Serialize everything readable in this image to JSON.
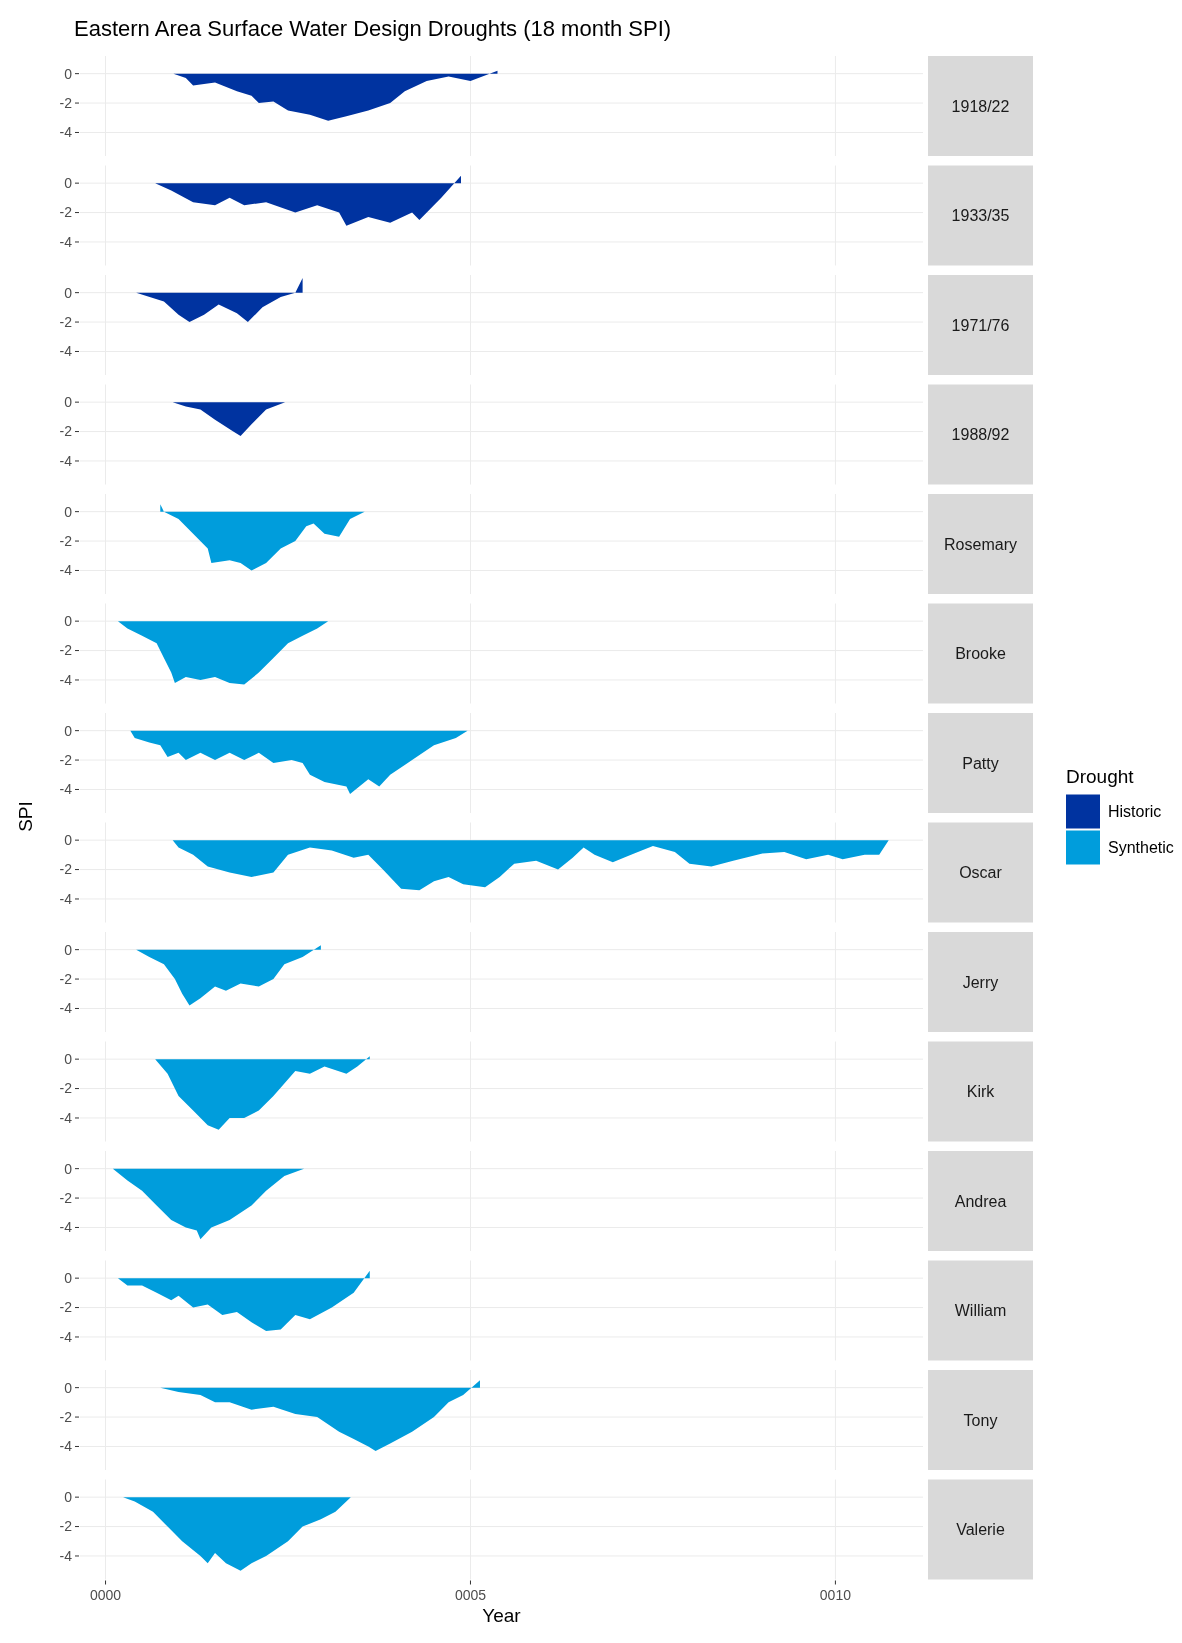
{
  "chart_data": [
    {
      "type": "area",
      "title": "Eastern Area Surface Water Design Droughts (18 month SPI)",
      "annotations": [
        "1918/22"
      ],
      "legend": "right",
      "legend_title": "Drought",
      "xlim": [
        -0.35,
        11.2
      ],
      "ylim": [
        -5.6,
        1.2
      ],
      "xticks": [
        {
          "value": 0,
          "label": null
        },
        {
          "value": 5,
          "label": null
        },
        {
          "value": 10,
          "label": null
        }
      ],
      "yticks": [
        -4,
        -2,
        0
      ],
      "grid": true,
      "tick_labels": "y",
      "series": [
        {
          "name": "Historic",
          "color": "#0033a0",
          "x": [
            0.93,
            1.1,
            1.2,
            1.5,
            1.8,
            2.0,
            2.1,
            2.3,
            2.5,
            2.8,
            3.05,
            3.3,
            3.6,
            3.9,
            4.1,
            4.4,
            4.7,
            5.0,
            5.37
          ],
          "values": [
            0,
            -0.3,
            -0.8,
            -0.6,
            -1.2,
            -1.5,
            -2.0,
            -1.9,
            -2.5,
            -2.8,
            -3.2,
            -2.9,
            -2.5,
            -2.0,
            -1.2,
            -0.5,
            -0.2,
            -0.5,
            0.2
          ]
        }
      ]
    },
    {
      "type": "area",
      "annotations": [
        "1933/35"
      ],
      "xlim": [
        -0.35,
        11.2
      ],
      "ylim": [
        -5.6,
        1.2
      ],
      "xticks": [
        {
          "value": 0,
          "label": null
        },
        {
          "value": 5,
          "label": null
        },
        {
          "value": 10,
          "label": null
        }
      ],
      "yticks": [
        -4,
        -2,
        0
      ],
      "grid": true,
      "tick_labels": "y",
      "series": [
        {
          "color": "#0033a0",
          "x": [
            0.68,
            0.9,
            1.2,
            1.5,
            1.7,
            1.9,
            2.2,
            2.6,
            2.9,
            3.2,
            3.3,
            3.6,
            3.9,
            4.2,
            4.3,
            4.6,
            4.87
          ],
          "values": [
            0,
            -0.5,
            -1.3,
            -1.5,
            -1.0,
            -1.5,
            -1.3,
            -2.0,
            -1.5,
            -2.0,
            -2.9,
            -2.3,
            -2.7,
            -2.0,
            -2.5,
            -1.0,
            0.5
          ]
        }
      ]
    },
    {
      "type": "area",
      "annotations": [
        "1971/76"
      ],
      "xlim": [
        -0.35,
        11.2
      ],
      "ylim": [
        -5.6,
        1.2
      ],
      "xticks": [
        {
          "value": 0,
          "label": null
        },
        {
          "value": 5,
          "label": null
        },
        {
          "value": 10,
          "label": null
        }
      ],
      "yticks": [
        -4,
        -2,
        0
      ],
      "grid": true,
      "tick_labels": "y",
      "series": [
        {
          "color": "#0033a0",
          "x": [
            0.42,
            0.8,
            1.0,
            1.15,
            1.35,
            1.55,
            1.8,
            1.95,
            2.15,
            2.4,
            2.6,
            2.7
          ],
          "values": [
            0,
            -0.6,
            -1.5,
            -2.0,
            -1.5,
            -0.8,
            -1.4,
            -2.0,
            -1.0,
            -0.3,
            0,
            1.0
          ]
        }
      ]
    },
    {
      "type": "area",
      "annotations": [
        "1988/92"
      ],
      "xlim": [
        -0.35,
        11.2
      ],
      "ylim": [
        -5.6,
        1.2
      ],
      "xticks": [
        {
          "value": 0,
          "label": null
        },
        {
          "value": 5,
          "label": null
        },
        {
          "value": 10,
          "label": null
        }
      ],
      "yticks": [
        -4,
        -2,
        0
      ],
      "grid": true,
      "tick_labels": "y",
      "series": [
        {
          "color": "#0033a0",
          "x": [
            0.92,
            1.1,
            1.3,
            1.5,
            1.75,
            1.85,
            2.0,
            2.2,
            2.46
          ],
          "values": [
            0,
            -0.3,
            -0.5,
            -1.2,
            -2.0,
            -2.3,
            -1.5,
            -0.5,
            0
          ]
        }
      ]
    },
    {
      "type": "area",
      "annotations": [
        "Rosemary"
      ],
      "xlim": [
        -0.35,
        11.2
      ],
      "ylim": [
        -5.6,
        1.2
      ],
      "xticks": [
        {
          "value": 0,
          "label": null
        },
        {
          "value": 5,
          "label": null
        },
        {
          "value": 10,
          "label": null
        }
      ],
      "yticks": [
        -4,
        -2,
        0
      ],
      "grid": true,
      "tick_labels": "y",
      "series": [
        {
          "name": "Synthetic",
          "color": "#009ddc",
          "x": [
            0.75,
            0.8,
            1.0,
            1.2,
            1.4,
            1.45,
            1.7,
            1.85,
            2.0,
            2.2,
            2.4,
            2.6,
            2.75,
            2.85,
            3.0,
            3.2,
            3.35,
            3.55
          ],
          "values": [
            0.5,
            0,
            -0.5,
            -1.5,
            -2.5,
            -3.5,
            -3.3,
            -3.5,
            -4.0,
            -3.5,
            -2.5,
            -2.0,
            -1.0,
            -0.8,
            -1.5,
            -1.7,
            -0.5,
            0
          ]
        }
      ]
    },
    {
      "type": "area",
      "annotations": [
        "Brooke"
      ],
      "xlim": [
        -0.35,
        11.2
      ],
      "ylim": [
        -5.6,
        1.2
      ],
      "xticks": [
        {
          "value": 0,
          "label": null
        },
        {
          "value": 5,
          "label": null
        },
        {
          "value": 10,
          "label": null
        }
      ],
      "yticks": [
        -4,
        -2,
        0
      ],
      "grid": true,
      "tick_labels": "y",
      "series": [
        {
          "color": "#009ddc",
          "x": [
            0.17,
            0.3,
            0.5,
            0.7,
            0.8,
            0.9,
            0.95,
            1.1,
            1.3,
            1.5,
            1.7,
            1.9,
            2.1,
            2.3,
            2.5,
            2.7,
            2.9,
            3.05
          ],
          "values": [
            0,
            -0.5,
            -1.0,
            -1.5,
            -2.5,
            -3.5,
            -4.2,
            -3.8,
            -4.0,
            -3.8,
            -4.2,
            -4.3,
            -3.5,
            -2.5,
            -1.5,
            -1.0,
            -0.5,
            0
          ]
        }
      ]
    },
    {
      "type": "area",
      "annotations": [
        "Patty"
      ],
      "xlim": [
        -0.35,
        11.2
      ],
      "ylim": [
        -5.6,
        1.2
      ],
      "xticks": [
        {
          "value": 0,
          "label": null
        },
        {
          "value": 5,
          "label": null
        },
        {
          "value": 10,
          "label": null
        }
      ],
      "yticks": [
        -4,
        -2,
        0
      ],
      "grid": true,
      "tick_labels": "y",
      "series": [
        {
          "color": "#009ddc",
          "x": [
            0.34,
            0.4,
            0.6,
            0.75,
            0.85,
            1.0,
            1.1,
            1.3,
            1.5,
            1.7,
            1.9,
            2.1,
            2.3,
            2.55,
            2.7,
            2.8,
            3.0,
            3.3,
            3.35,
            3.6,
            3.75,
            3.9,
            4.2,
            4.5,
            4.8,
            4.96
          ],
          "values": [
            0,
            -0.5,
            -0.8,
            -1.0,
            -1.8,
            -1.5,
            -2.0,
            -1.5,
            -2.0,
            -1.5,
            -2.0,
            -1.5,
            -2.2,
            -2.0,
            -2.2,
            -3.0,
            -3.5,
            -3.8,
            -4.3,
            -3.3,
            -3.8,
            -3.0,
            -2.0,
            -1.0,
            -0.5,
            0
          ]
        }
      ]
    },
    {
      "type": "area",
      "annotations": [
        "Oscar"
      ],
      "ylabel": "SPI",
      "xlim": [
        -0.35,
        11.2
      ],
      "ylim": [
        -5.6,
        1.2
      ],
      "xticks": [
        {
          "value": 0,
          "label": null
        },
        {
          "value": 5,
          "label": null
        },
        {
          "value": 10,
          "label": null
        }
      ],
      "yticks": [
        -4,
        -2,
        0
      ],
      "grid": true,
      "tick_labels": "y",
      "series": [
        {
          "color": "#009ddc",
          "x": [
            0.92,
            1.0,
            1.2,
            1.4,
            1.7,
            2.0,
            2.3,
            2.5,
            2.8,
            3.1,
            3.4,
            3.6,
            3.8,
            4.05,
            4.3,
            4.5,
            4.7,
            4.9,
            5.2,
            5.4,
            5.6,
            5.9,
            6.2,
            6.4,
            6.55,
            6.7,
            6.95,
            7.2,
            7.5,
            7.8,
            8.0,
            8.3,
            8.6,
            9.0,
            9.3,
            9.6,
            9.9,
            10.1,
            10.4,
            10.6,
            10.73
          ],
          "values": [
            0,
            -0.5,
            -1.0,
            -1.8,
            -2.2,
            -2.5,
            -2.2,
            -1.0,
            -0.5,
            -0.7,
            -1.2,
            -1.0,
            -2.0,
            -3.3,
            -3.4,
            -2.8,
            -2.5,
            -3.0,
            -3.2,
            -2.5,
            -1.6,
            -1.4,
            -2.0,
            -1.2,
            -0.5,
            -1.0,
            -1.5,
            -1.0,
            -0.4,
            -0.8,
            -1.6,
            -1.8,
            -1.4,
            -0.9,
            -0.8,
            -1.3,
            -1.0,
            -1.3,
            -1.0,
            -1.0,
            0
          ]
        }
      ]
    },
    {
      "type": "area",
      "annotations": [
        "Jerry"
      ],
      "xlim": [
        -0.35,
        11.2
      ],
      "ylim": [
        -5.6,
        1.2
      ],
      "xticks": [
        {
          "value": 0,
          "label": null
        },
        {
          "value": 5,
          "label": null
        },
        {
          "value": 10,
          "label": null
        }
      ],
      "yticks": [
        -4,
        -2,
        0
      ],
      "grid": true,
      "tick_labels": "y",
      "series": [
        {
          "color": "#009ddc",
          "x": [
            0.42,
            0.6,
            0.8,
            0.95,
            1.05,
            1.15,
            1.3,
            1.5,
            1.65,
            1.85,
            2.1,
            2.3,
            2.45,
            2.7,
            2.95
          ],
          "values": [
            0,
            -0.5,
            -1.0,
            -2.0,
            -3.0,
            -3.8,
            -3.3,
            -2.5,
            -2.8,
            -2.3,
            -2.5,
            -2.0,
            -1.0,
            -0.5,
            0.3
          ]
        }
      ]
    },
    {
      "type": "area",
      "annotations": [
        "Kirk"
      ],
      "xlim": [
        -0.35,
        11.2
      ],
      "ylim": [
        -5.6,
        1.2
      ],
      "xticks": [
        {
          "value": 0,
          "label": null
        },
        {
          "value": 5,
          "label": null
        },
        {
          "value": 10,
          "label": null
        }
      ],
      "yticks": [
        -4,
        -2,
        0
      ],
      "grid": true,
      "tick_labels": "y",
      "series": [
        {
          "color": "#009ddc",
          "x": [
            0.68,
            0.85,
            1.0,
            1.2,
            1.4,
            1.55,
            1.7,
            1.9,
            2.1,
            2.3,
            2.6,
            2.8,
            3.0,
            3.3,
            3.45,
            3.62
          ],
          "values": [
            0,
            -1.0,
            -2.5,
            -3.5,
            -4.5,
            -4.8,
            -4.0,
            -4.0,
            -3.5,
            -2.5,
            -0.8,
            -1.0,
            -0.5,
            -1.0,
            -0.5,
            0.2
          ]
        }
      ]
    },
    {
      "type": "area",
      "annotations": [
        "Andrea"
      ],
      "xlim": [
        -0.35,
        11.2
      ],
      "ylim": [
        -5.6,
        1.2
      ],
      "xticks": [
        {
          "value": 0,
          "label": null
        },
        {
          "value": 5,
          "label": null
        },
        {
          "value": 10,
          "label": null
        }
      ],
      "yticks": [
        -4,
        -2,
        0
      ],
      "grid": true,
      "tick_labels": "y",
      "series": [
        {
          "color": "#009ddc",
          "x": [
            0.1,
            0.3,
            0.5,
            0.7,
            0.9,
            1.1,
            1.25,
            1.3,
            1.45,
            1.7,
            2.0,
            2.2,
            2.45,
            2.72
          ],
          "values": [
            0,
            -0.8,
            -1.5,
            -2.5,
            -3.5,
            -4.0,
            -4.2,
            -4.8,
            -4.0,
            -3.5,
            -2.5,
            -1.5,
            -0.5,
            0
          ]
        }
      ]
    },
    {
      "type": "area",
      "annotations": [
        "William"
      ],
      "xlim": [
        -0.35,
        11.2
      ],
      "ylim": [
        -5.6,
        1.2
      ],
      "xticks": [
        {
          "value": 0,
          "label": null
        },
        {
          "value": 5,
          "label": null
        },
        {
          "value": 10,
          "label": null
        }
      ],
      "yticks": [
        -4,
        -2,
        0
      ],
      "grid": true,
      "tick_labels": "y",
      "series": [
        {
          "color": "#009ddc",
          "x": [
            0.17,
            0.3,
            0.5,
            0.7,
            0.9,
            1.0,
            1.2,
            1.4,
            1.6,
            1.8,
            2.0,
            2.2,
            2.4,
            2.6,
            2.8,
            3.1,
            3.4,
            3.62
          ],
          "values": [
            0,
            -0.5,
            -0.5,
            -1.0,
            -1.5,
            -1.2,
            -2.0,
            -1.8,
            -2.5,
            -2.3,
            -3.0,
            -3.6,
            -3.5,
            -2.5,
            -2.8,
            -2.0,
            -1.0,
            0.5
          ]
        }
      ]
    },
    {
      "type": "area",
      "annotations": [
        "Tony"
      ],
      "xlim": [
        -0.35,
        11.2
      ],
      "ylim": [
        -5.6,
        1.2
      ],
      "xticks": [
        {
          "value": 0,
          "label": null
        },
        {
          "value": 5,
          "label": null
        },
        {
          "value": 10,
          "label": null
        }
      ],
      "yticks": [
        -4,
        -2,
        0
      ],
      "grid": true,
      "tick_labels": "y",
      "series": [
        {
          "color": "#009ddc",
          "x": [
            0.75,
            1.0,
            1.3,
            1.5,
            1.7,
            2.0,
            2.3,
            2.6,
            2.9,
            3.2,
            3.4,
            3.6,
            3.7,
            3.9,
            4.2,
            4.5,
            4.7,
            4.9,
            5.13
          ],
          "values": [
            0,
            -0.3,
            -0.5,
            -1.0,
            -1.0,
            -1.5,
            -1.3,
            -1.8,
            -2.0,
            -3.0,
            -3.5,
            -4.0,
            -4.3,
            -3.8,
            -3.0,
            -2.0,
            -1.0,
            -0.5,
            0.5
          ]
        }
      ]
    },
    {
      "type": "area",
      "annotations": [
        "Valerie"
      ],
      "xlabel": "Year",
      "xlim": [
        -0.35,
        11.2
      ],
      "ylim": [
        -5.6,
        1.2
      ],
      "xticks": [
        {
          "value": 0,
          "label": "0000"
        },
        {
          "value": 5,
          "label": "0005"
        },
        {
          "value": 10,
          "label": "0010"
        }
      ],
      "yticks": [
        -4,
        -2,
        0
      ],
      "grid": true,
      "series": [
        {
          "color": "#009ddc",
          "x": [
            0.24,
            0.4,
            0.65,
            0.85,
            1.05,
            1.3,
            1.4,
            1.5,
            1.65,
            1.85,
            2.0,
            2.2,
            2.5,
            2.7,
            2.95,
            3.15,
            3.36
          ],
          "values": [
            0,
            -0.3,
            -1.0,
            -2.0,
            -3.0,
            -4.0,
            -4.5,
            -3.8,
            -4.5,
            -5.0,
            -4.5,
            -4.0,
            -3.0,
            -2.0,
            -1.5,
            -1.0,
            0
          ]
        }
      ]
    }
  ]
}
